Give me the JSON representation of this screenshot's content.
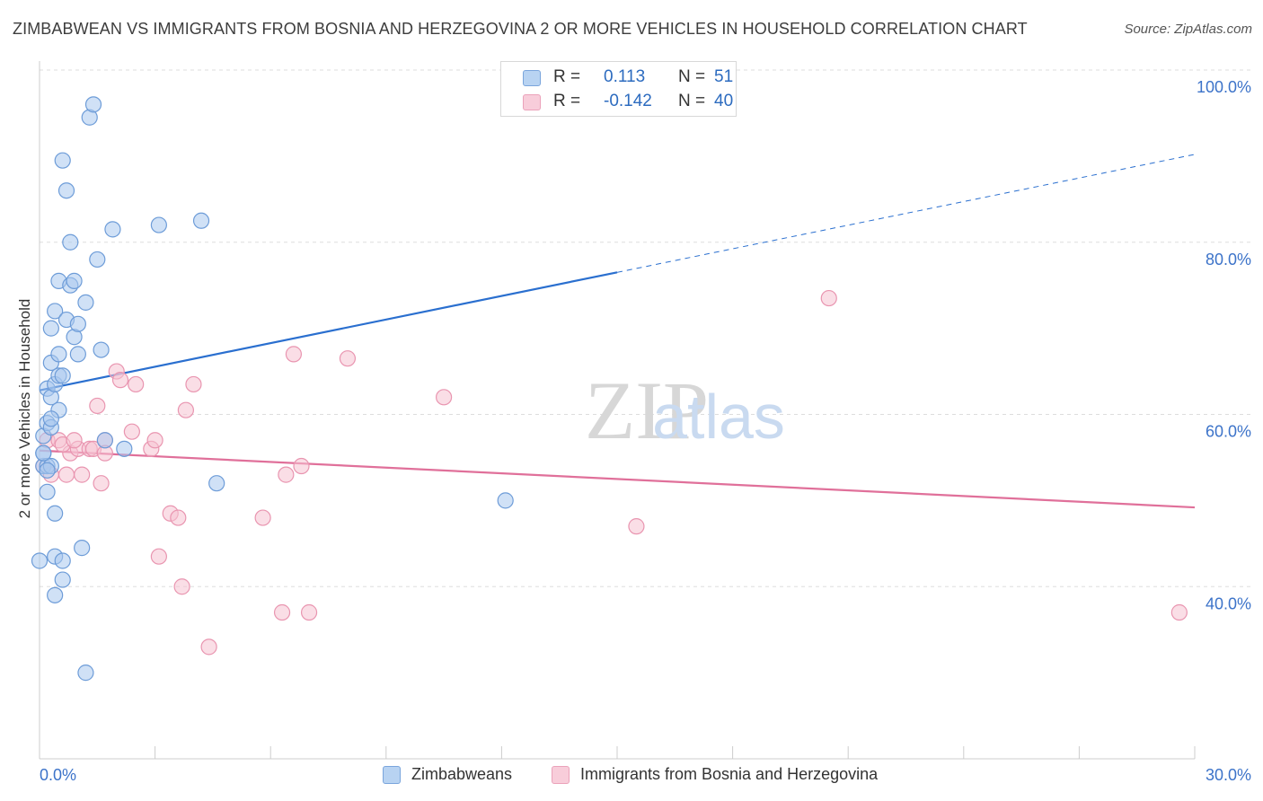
{
  "header": {
    "title": "ZIMBABWEAN VS IMMIGRANTS FROM BOSNIA AND HERZEGOVINA 2 OR MORE VEHICLES IN HOUSEHOLD CORRELATION CHART",
    "source": "Source: ZipAtlas.com"
  },
  "legend_top": {
    "rows": [
      {
        "r_label": "R =",
        "r_value": "0.113",
        "n_label": "N =",
        "n_value": "51"
      },
      {
        "r_label": "R =",
        "r_value": "-0.142",
        "n_label": "N =",
        "n_value": "40"
      }
    ]
  },
  "legend_bottom": {
    "items": [
      {
        "label": "Zimbabweans"
      },
      {
        "label": "Immigrants from Bosnia and Herzegovina"
      }
    ]
  },
  "colors": {
    "blue_fill": "#a9c8ee",
    "blue_stroke": "#6d9cd8",
    "blue_line": "#2a6fcf",
    "pink_fill": "#f6c3d2",
    "pink_stroke": "#e995b0",
    "pink_line": "#e0709a",
    "axis_text": "#3c73c9",
    "grid": "#dddddd"
  },
  "chart_data": {
    "type": "scatter",
    "title": "ZIMBABWEAN VS IMMIGRANTS FROM BOSNIA AND HERZEGOVINA 2 OR MORE VEHICLES IN HOUSEHOLD CORRELATION CHART",
    "xlabel": "",
    "ylabel": "2 or more Vehicles in Household",
    "xlim": [
      0,
      30
    ],
    "ylim": [
      20,
      100
    ],
    "x_tick_labels": [
      "0.0%",
      "30.0%"
    ],
    "y_ticks": [
      40,
      60,
      80,
      100
    ],
    "y_tick_labels": [
      "40.0%",
      "60.0%",
      "80.0%",
      "100.0%"
    ],
    "watermark": "ZIPatlas",
    "series": [
      {
        "name": "Zimbabweans",
        "color": "#6d9cd8",
        "x": [
          0.0,
          0.1,
          0.1,
          0.1,
          0.2,
          0.2,
          0.2,
          0.2,
          0.3,
          0.3,
          0.3,
          0.3,
          0.4,
          0.4,
          0.4,
          0.4,
          0.4,
          0.5,
          0.5,
          0.5,
          0.5,
          0.6,
          0.6,
          0.6,
          0.7,
          0.7,
          0.8,
          0.8,
          0.9,
          0.9,
          1.0,
          1.0,
          1.1,
          1.2,
          1.2,
          1.3,
          1.4,
          1.5,
          1.6,
          1.7,
          1.9,
          2.2,
          3.1,
          4.2,
          4.6,
          12.1,
          0.3,
          0.3,
          0.2,
          0.1,
          0.6
        ],
        "y": [
          43.0,
          54.0,
          57.5,
          55.5,
          59.0,
          54.0,
          51.0,
          63.0,
          66.0,
          62.0,
          58.5,
          70.0,
          48.5,
          72.0,
          63.5,
          43.5,
          39.0,
          67.0,
          75.5,
          64.5,
          60.5,
          43.0,
          40.8,
          89.5,
          86.0,
          71.0,
          80.0,
          75.0,
          75.5,
          69.0,
          70.5,
          67.0,
          44.5,
          73.0,
          30.0,
          94.5,
          96.0,
          78.0,
          67.5,
          57.0,
          81.5,
          56.0,
          82.0,
          82.5,
          52.0,
          50.0,
          54.0,
          59.5,
          53.5,
          55.5,
          64.5
        ],
        "trend": {
          "x": [
            0,
            15
          ],
          "y": [
            62.8,
            76.5
          ],
          "dashed_to_x": 30,
          "dashed_to_y": 90.2
        }
      },
      {
        "name": "Immigrants from Bosnia and Herzegovina",
        "color": "#e995b0",
        "x": [
          0.1,
          0.2,
          0.3,
          0.5,
          0.7,
          0.8,
          1.0,
          1.1,
          1.3,
          1.4,
          1.5,
          1.6,
          1.7,
          2.0,
          2.1,
          2.4,
          2.5,
          2.9,
          3.0,
          3.1,
          3.4,
          3.6,
          3.7,
          3.8,
          4.0,
          4.4,
          5.8,
          6.3,
          6.4,
          6.6,
          6.8,
          7.0,
          8.0,
          10.5,
          15.5,
          20.5,
          29.6,
          1.7,
          0.6,
          0.9
        ],
        "y": [
          54.0,
          57.0,
          53.0,
          57.0,
          53.0,
          55.5,
          56.0,
          53.0,
          56.0,
          56.0,
          61.0,
          52.0,
          57.0,
          65.0,
          64.0,
          58.0,
          63.5,
          56.0,
          57.0,
          43.5,
          48.5,
          48.0,
          40.0,
          60.5,
          63.5,
          33.0,
          48.0,
          37.0,
          53.0,
          67.0,
          54.0,
          37.0,
          66.5,
          62.0,
          47.0,
          73.5,
          37.0,
          55.5,
          56.5,
          57.0
        ],
        "trend": {
          "x": [
            0,
            30
          ],
          "y": [
            55.8,
            49.2
          ]
        }
      }
    ]
  }
}
